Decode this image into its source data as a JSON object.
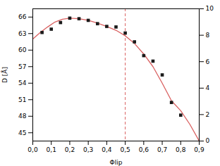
{
  "chart_data": {
    "type": "line",
    "xlabel": "Φlip",
    "ylabel": "D [Å]",
    "xlim": [
      0.0,
      0.9
    ],
    "ylim": [
      43.5,
      67.5
    ],
    "y2lim": [
      0,
      10
    ],
    "xticks": [
      {
        "value": 0.0,
        "label": "0,0"
      },
      {
        "value": 0.1,
        "label": "0,1"
      },
      {
        "value": 0.2,
        "label": "0,2"
      },
      {
        "value": 0.3,
        "label": "0,3"
      },
      {
        "value": 0.4,
        "label": "0,4"
      },
      {
        "value": 0.5,
        "label": "0,5"
      },
      {
        "value": 0.6,
        "label": "0,6"
      },
      {
        "value": 0.7,
        "label": "0,7"
      },
      {
        "value": 0.8,
        "label": "0,8"
      },
      {
        "value": 0.9,
        "label": "0,9"
      }
    ],
    "yticks": [
      45,
      48,
      51,
      54,
      57,
      60,
      63,
      66
    ],
    "y2ticks": [
      0,
      2,
      4,
      6,
      8,
      10
    ],
    "series": [
      {
        "type": "line",
        "color": "#d96060",
        "x": [
          0.0,
          0.04,
          0.08,
          0.12,
          0.16,
          0.2,
          0.25,
          0.3,
          0.35,
          0.4,
          0.45,
          0.5,
          0.55,
          0.6,
          0.65,
          0.7,
          0.75,
          0.8,
          0.85,
          0.9
        ],
        "values": [
          62.0,
          63.2,
          64.2,
          65.1,
          65.6,
          65.8,
          65.7,
          65.4,
          64.9,
          64.3,
          63.6,
          62.6,
          61.2,
          59.3,
          57.0,
          54.0,
          50.8,
          49.0,
          46.5,
          43.5
        ]
      },
      {
        "type": "scatter",
        "color": "#1a1a1a",
        "marker": "square",
        "x": [
          0.05,
          0.1,
          0.15,
          0.2,
          0.25,
          0.3,
          0.35,
          0.4,
          0.45,
          0.5,
          0.55,
          0.6,
          0.65,
          0.7,
          0.75,
          0.8
        ],
        "values": [
          63.2,
          63.8,
          65.0,
          65.8,
          65.7,
          65.4,
          64.8,
          64.3,
          64.2,
          63.1,
          61.5,
          59.0,
          58.0,
          55.5,
          50.5,
          48.2
        ]
      }
    ],
    "vlines": [
      {
        "x": 0.5,
        "color": "#d96060",
        "line_style": "dashed"
      }
    ]
  }
}
